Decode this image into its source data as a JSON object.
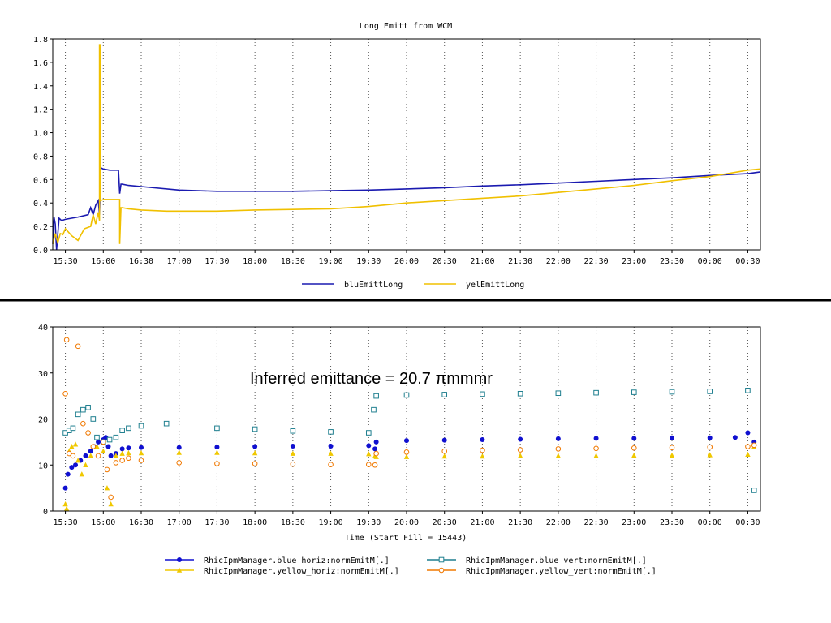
{
  "colors": {
    "blue": "#1a1ab0",
    "yellow": "#f0c000",
    "blue_h": "#1010d0",
    "blue_v": "#1f7f8f",
    "yellow_h": "#f0c800",
    "yellow_v": "#f07800"
  },
  "annotation": "Inferred emittance = 20.7 πmmmr",
  "chart_data": [
    {
      "type": "line",
      "title": "Long Emitt from WCM",
      "xlabel": "",
      "ylabel": "",
      "xlim": [
        "15:20",
        "00:40"
      ],
      "ylim": [
        0,
        1.8
      ],
      "yticks": [
        "0.0",
        "0.2",
        "0.4",
        "0.6",
        "0.8",
        "1.0",
        "1.2",
        "1.4",
        "1.6",
        "1.8"
      ],
      "xticks": [
        "15:30",
        "16:00",
        "16:30",
        "17:00",
        "17:30",
        "18:00",
        "18:30",
        "19:00",
        "19:30",
        "20:00",
        "20:30",
        "21:00",
        "21:30",
        "22:00",
        "22:30",
        "23:00",
        "23:30",
        "00:00",
        "00:30"
      ],
      "grid": "vertical dotted",
      "legend": "bottom",
      "series": [
        {
          "name": "bluEmittLong",
          "color": "blue",
          "x": [
            "15:20",
            "15:21",
            "15:22",
            "15:23",
            "15:25",
            "15:27",
            "15:30",
            "15:40",
            "15:48",
            "15:50",
            "15:52",
            "15:54",
            "15:56",
            "15:57",
            "15:58",
            "16:00",
            "16:05",
            "16:10",
            "16:12",
            "16:13",
            "16:14",
            "16:15",
            "16:20",
            "16:30",
            "17:00",
            "17:30",
            "18:00",
            "18:30",
            "19:00",
            "19:30",
            "20:00",
            "20:30",
            "21:00",
            "21:30",
            "22:00",
            "22:30",
            "23:00",
            "23:30",
            "00:00",
            "00:30",
            "00:40"
          ],
          "y": [
            0.05,
            0.28,
            0.22,
            0.0,
            0.27,
            0.25,
            0.26,
            0.28,
            0.3,
            0.36,
            0.3,
            0.38,
            0.42,
            0.3,
            0.7,
            0.69,
            0.68,
            0.68,
            0.68,
            0.48,
            0.56,
            0.56,
            0.55,
            0.54,
            0.51,
            0.5,
            0.5,
            0.5,
            0.505,
            0.51,
            0.52,
            0.53,
            0.545,
            0.555,
            0.57,
            0.585,
            0.6,
            0.615,
            0.635,
            0.65,
            0.665
          ]
        },
        {
          "name": "yelEmittLong",
          "color": "yellow",
          "x": [
            "15:20",
            "15:22",
            "15:24",
            "15:26",
            "15:28",
            "15:30",
            "15:35",
            "15:40",
            "15:45",
            "15:50",
            "15:52",
            "15:54",
            "15:56",
            "15:57",
            "15:57",
            "15:58",
            "15:58",
            "16:00",
            "16:10",
            "16:13",
            "16:13",
            "16:14",
            "16:15",
            "16:20",
            "16:30",
            "16:50",
            "17:30",
            "18:00",
            "18:30",
            "19:00",
            "19:30",
            "20:00",
            "20:30",
            "21:00",
            "21:30",
            "22:00",
            "22:30",
            "23:00",
            "23:30",
            "00:00",
            "00:30",
            "00:40"
          ],
          "y": [
            0.05,
            0.14,
            0.06,
            0.14,
            0.13,
            0.18,
            0.12,
            0.08,
            0.18,
            0.2,
            0.3,
            0.22,
            0.32,
            0.25,
            1.75,
            1.75,
            0.42,
            0.43,
            0.43,
            0.43,
            0.05,
            0.36,
            0.36,
            0.35,
            0.34,
            0.33,
            0.33,
            0.34,
            0.345,
            0.35,
            0.37,
            0.4,
            0.42,
            0.44,
            0.46,
            0.49,
            0.52,
            0.55,
            0.59,
            0.625,
            0.68,
            0.69
          ]
        }
      ]
    },
    {
      "type": "scatter",
      "title": "",
      "xlabel": "Time (Start Fill = 15443)",
      "ylabel": "",
      "xlim": [
        "15:20",
        "00:40"
      ],
      "ylim": [
        0,
        40
      ],
      "yticks": [
        "0",
        "10",
        "20",
        "30",
        "40"
      ],
      "xticks": [
        "15:30",
        "16:00",
        "16:30",
        "17:00",
        "17:30",
        "18:00",
        "18:30",
        "19:00",
        "19:30",
        "20:00",
        "20:30",
        "21:00",
        "21:30",
        "22:00",
        "22:30",
        "23:00",
        "23:30",
        "00:00",
        "00:30"
      ],
      "grid": "vertical dotted",
      "legend": "bottom",
      "series": [
        {
          "name": "RhicIpmManager.blue_horiz:normEmitM[.]",
          "color": "blue_h",
          "marker": "filled-circle",
          "x": [
            "15:30",
            "15:32",
            "15:35",
            "15:38",
            "15:42",
            "15:46",
            "15:50",
            "15:53",
            "15:56",
            "16:00",
            "16:02",
            "16:04",
            "16:06",
            "16:10",
            "16:15",
            "16:20",
            "16:30",
            "17:00",
            "17:30",
            "18:00",
            "18:30",
            "19:00",
            "19:30",
            "19:35",
            "19:36",
            "20:00",
            "20:30",
            "21:00",
            "21:30",
            "22:00",
            "22:30",
            "23:00",
            "23:30",
            "00:00",
            "00:20",
            "00:30",
            "00:35"
          ],
          "y": [
            5,
            8,
            9.5,
            10,
            11,
            12,
            13,
            14,
            15,
            15.5,
            16,
            14,
            12,
            12.5,
            13.5,
            13.7,
            13.8,
            13.8,
            13.9,
            14,
            14.1,
            14.1,
            14.2,
            13.5,
            15,
            15.3,
            15.4,
            15.5,
            15.6,
            15.7,
            15.8,
            15.8,
            15.9,
            15.9,
            16,
            17,
            15
          ]
        },
        {
          "name": "RhicIpmManager.blue_vert:normEmitM[.]",
          "color": "blue_v",
          "marker": "open-square",
          "x": [
            "15:30",
            "15:33",
            "15:36",
            "15:40",
            "15:44",
            "15:48",
            "15:52",
            "15:55",
            "16:00",
            "16:05",
            "16:10",
            "16:15",
            "16:20",
            "16:30",
            "16:50",
            "17:30",
            "18:00",
            "18:30",
            "19:00",
            "19:30",
            "19:34",
            "19:36",
            "20:00",
            "20:30",
            "21:00",
            "21:30",
            "22:00",
            "22:30",
            "23:00",
            "23:30",
            "00:00",
            "00:30",
            "00:35"
          ],
          "y": [
            17,
            17.5,
            18,
            21,
            22,
            22.5,
            20,
            16,
            15,
            15.5,
            16,
            17.5,
            18,
            18.5,
            19,
            18,
            17.8,
            17.4,
            17.2,
            17,
            22,
            25,
            25.2,
            25.3,
            25.4,
            25.5,
            25.6,
            25.7,
            25.8,
            25.9,
            26,
            26.2,
            4.5
          ]
        },
        {
          "name": "RhicIpmManager.yellow_horiz:normEmitM[.]",
          "color": "yellow_h",
          "marker": "filled-triangle",
          "x": [
            "15:30",
            "15:31",
            "15:33",
            "15:35",
            "15:38",
            "15:40",
            "15:43",
            "15:46",
            "15:50",
            "15:55",
            "16:00",
            "16:03",
            "16:06",
            "16:10",
            "16:15",
            "16:20",
            "16:30",
            "17:00",
            "17:30",
            "18:00",
            "18:30",
            "19:00",
            "19:30",
            "19:35",
            "19:36",
            "20:00",
            "20:30",
            "21:00",
            "21:30",
            "22:00",
            "22:30",
            "23:00",
            "23:30",
            "00:00",
            "00:30",
            "00:35"
          ],
          "y": [
            1.5,
            0.5,
            13,
            14,
            14.5,
            11,
            8,
            10,
            12,
            14,
            13,
            5,
            1.5,
            12,
            12.5,
            12.6,
            12.6,
            12.7,
            12.7,
            12.6,
            12.5,
            12.5,
            12.4,
            12,
            11.8,
            11.8,
            11.9,
            11.9,
            12,
            12,
            12,
            12.1,
            12.1,
            12.2,
            12.3,
            14
          ]
        },
        {
          "name": "RhicIpmManager.yellow_vert:normEmitM[.]",
          "color": "yellow_v",
          "marker": "open-circle",
          "x": [
            "15:30",
            "15:31",
            "15:33",
            "15:36",
            "15:40",
            "15:44",
            "15:48",
            "15:52",
            "15:56",
            "16:00",
            "16:03",
            "16:06",
            "16:10",
            "16:15",
            "16:20",
            "16:30",
            "17:00",
            "17:30",
            "18:00",
            "18:30",
            "19:00",
            "19:30",
            "19:35",
            "19:36",
            "20:00",
            "20:30",
            "21:00",
            "21:30",
            "22:00",
            "22:30",
            "23:00",
            "23:30",
            "00:00",
            "00:30",
            "00:35"
          ],
          "y": [
            25.5,
            37.2,
            12.5,
            12,
            35.8,
            19,
            17,
            14,
            12,
            15,
            9,
            3,
            10.5,
            11,
            11.5,
            11,
            10.5,
            10.3,
            10.3,
            10.2,
            10.1,
            10.1,
            10,
            12.5,
            12.8,
            13,
            13.2,
            13.3,
            13.5,
            13.6,
            13.7,
            13.8,
            13.9,
            14,
            14.3
          ]
        }
      ]
    }
  ]
}
